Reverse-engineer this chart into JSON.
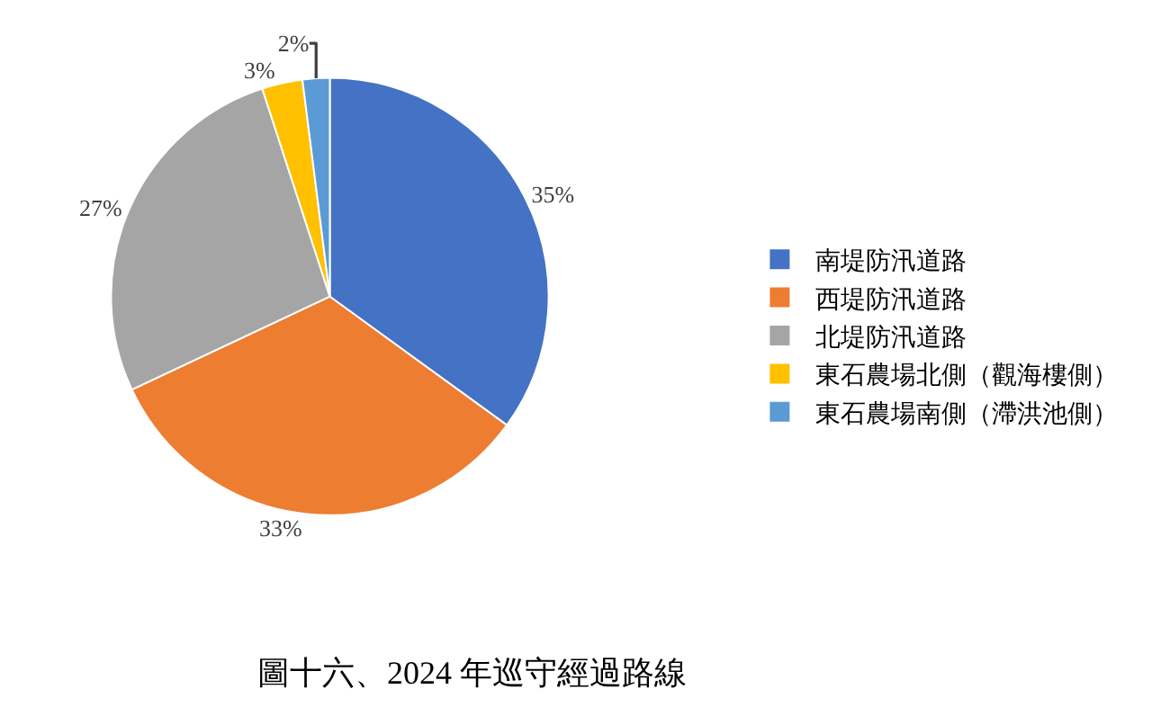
{
  "chart_data": {
    "type": "pie",
    "title": "圖十六、2024 年巡守經過路線",
    "categories": [
      "南堤防汛道路",
      "西堤防汛道路",
      "北堤防汛道路",
      "東石農場北側（觀海樓側）",
      "東石農場南側（滯洪池側）"
    ],
    "values": [
      35,
      33,
      27,
      3,
      2
    ],
    "value_labels": [
      "35%",
      "33%",
      "27%",
      "3%",
      "2%"
    ],
    "colors": [
      "#4472c4",
      "#ed7d31",
      "#a5a5a5",
      "#ffc000",
      "#5b9bd5"
    ],
    "legend": "right"
  }
}
